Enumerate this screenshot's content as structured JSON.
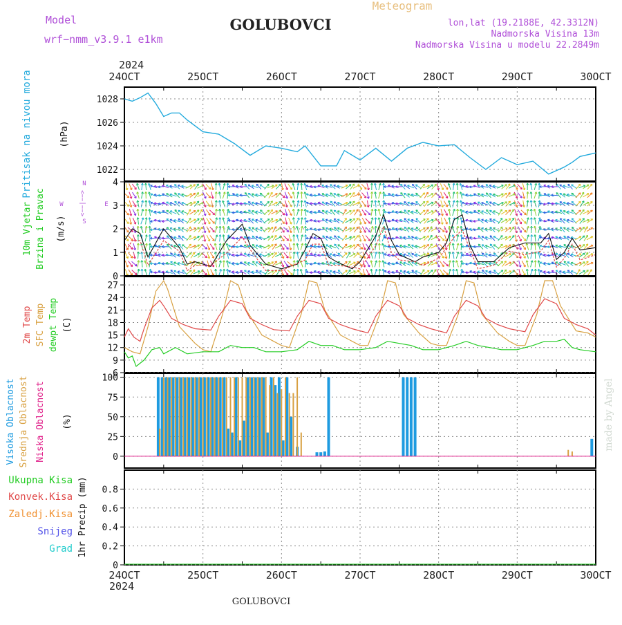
{
  "header": {
    "model_label": "Model",
    "model_name": "wrf−nmm_v3.9.1  e1km",
    "station": "GOLUBOVCI",
    "product": "Meteogram",
    "lonlat": "lon,lat (19.2188E, 42.3312N)",
    "elevation": "Nadmorska Visina 13m",
    "model_elevation": "Nadmorska Visina u modelu 22.2849m",
    "footer_station": "GOLUBOVCI",
    "watermark": "made by Angel"
  },
  "colors": {
    "pressure": "#22aadd",
    "t2m": "#e04848",
    "sfc": "#d8a040",
    "dewpt": "#22cc22",
    "high_cloud": "#1e9be0",
    "mid_cloud": "#d8a040",
    "low_cloud": "#e0208a",
    "purple_text": "#b050d8",
    "meteogram_title": "#e8c080"
  },
  "chart_data": [
    {
      "type": "line",
      "panel": "pressure",
      "ylabel_color": "Pritisak na nivou mora",
      "ylabel_units": "(hPa)",
      "year_top": "2024",
      "year_bottom": "2024",
      "x_ticks": [
        "24OCT",
        "25OCT",
        "26OCT",
        "27OCT",
        "28OCT",
        "29OCT",
        "30OCT"
      ],
      "xlim": [
        24,
        30
      ],
      "ylim": [
        1021,
        1029
      ],
      "yticks": [
        1022,
        1024,
        1026,
        1028
      ],
      "grid": true,
      "x": [
        24.0,
        24.1,
        24.2,
        24.3,
        24.4,
        24.5,
        24.6,
        24.7,
        24.8,
        25.0,
        25.2,
        25.4,
        25.6,
        25.8,
        26.0,
        26.2,
        26.3,
        26.5,
        26.7,
        26.8,
        27.0,
        27.2,
        27.4,
        27.6,
        27.8,
        28.0,
        28.2,
        28.4,
        28.6,
        28.8,
        29.0,
        29.2,
        29.4,
        29.6,
        29.7,
        29.8,
        30.0
      ],
      "y": [
        1028.0,
        1027.8,
        1028.1,
        1028.5,
        1027.6,
        1026.5,
        1026.8,
        1026.8,
        1026.2,
        1025.2,
        1025.0,
        1024.2,
        1023.2,
        1024.0,
        1023.8,
        1023.5,
        1024.0,
        1022.3,
        1022.3,
        1023.6,
        1022.8,
        1023.8,
        1022.7,
        1023.8,
        1024.3,
        1024.0,
        1024.1,
        1023.0,
        1022.0,
        1023.0,
        1022.4,
        1022.7,
        1021.6,
        1022.2,
        1022.6,
        1023.1,
        1023.4
      ]
    },
    {
      "type": "line",
      "panel": "wind",
      "ylabel_color_1": "10m Vjetar",
      "ylabel_color_2": "Brzina i Pravac",
      "ylabel_units": "(m/s)",
      "compass": [
        "W",
        "<−−|−−>",
        "E",
        "N",
        "S"
      ],
      "xlim": [
        24,
        30
      ],
      "ylim": [
        0,
        4
      ],
      "yticks": [
        0,
        1,
        2,
        3,
        4
      ],
      "grid": true,
      "x": [
        24.0,
        24.1,
        24.2,
        24.3,
        24.5,
        24.7,
        24.8,
        24.9,
        25.1,
        25.3,
        25.5,
        25.6,
        25.8,
        26.0,
        26.2,
        26.3,
        26.4,
        26.5,
        26.6,
        26.7,
        26.9,
        27.0,
        27.2,
        27.3,
        27.4,
        27.5,
        27.7,
        27.8,
        28.0,
        28.1,
        28.2,
        28.3,
        28.4,
        28.5,
        28.7,
        28.9,
        29.1,
        29.3,
        29.4,
        29.5,
        29.6,
        29.7,
        29.8,
        30.0
      ],
      "y": [
        1.5,
        2.0,
        1.8,
        0.8,
        2.0,
        1.2,
        0.5,
        0.6,
        0.4,
        1.5,
        2.2,
        1.3,
        0.5,
        0.3,
        0.5,
        1.1,
        1.8,
        1.6,
        0.8,
        0.6,
        0.3,
        0.6,
        1.7,
        2.6,
        1.5,
        0.9,
        0.6,
        0.8,
        1.0,
        1.4,
        2.4,
        2.6,
        1.3,
        0.6,
        0.6,
        1.2,
        1.4,
        1.4,
        1.8,
        0.7,
        1.0,
        1.6,
        1.1,
        1.2
      ]
    },
    {
      "type": "line",
      "panel": "temperature",
      "ylabel_t2m": "2m Temp",
      "ylabel_sfc": "SFC Temp",
      "ylabel_dew": "dewpt Temp",
      "ylabel_units": "(C)",
      "xlim": [
        24,
        30
      ],
      "ylim": [
        6,
        29
      ],
      "yticks": [
        6,
        9,
        12,
        15,
        18,
        21,
        24,
        27
      ],
      "grid": true,
      "series": [
        {
          "name": "2m Temp",
          "x": [
            24.0,
            24.05,
            24.12,
            24.2,
            24.25,
            24.35,
            24.45,
            24.5,
            24.6,
            24.75,
            24.9,
            25.1,
            25.2,
            25.35,
            25.5,
            25.6,
            25.75,
            25.9,
            26.1,
            26.2,
            26.35,
            26.5,
            26.6,
            26.75,
            26.9,
            27.1,
            27.2,
            27.35,
            27.5,
            27.6,
            27.75,
            27.9,
            28.1,
            28.2,
            28.35,
            28.5,
            28.6,
            28.75,
            28.9,
            29.1,
            29.2,
            29.35,
            29.5,
            29.6,
            29.75,
            29.9,
            30.0
          ],
          "y": [
            14.5,
            16.5,
            14.5,
            13.5,
            16.5,
            21.5,
            23.3,
            22.0,
            19.0,
            17.5,
            16.5,
            16.2,
            19.5,
            23.3,
            22.5,
            19.0,
            17.5,
            16.3,
            16.0,
            19.5,
            23.3,
            22.5,
            19.0,
            17.5,
            16.5,
            15.5,
            19.5,
            23.3,
            22.0,
            19.0,
            17.5,
            16.5,
            15.5,
            19.5,
            23.3,
            22.0,
            19.0,
            17.5,
            16.5,
            15.8,
            19.8,
            23.7,
            22.5,
            19.0,
            17.5,
            16.5,
            15.0
          ]
        },
        {
          "name": "SFC Temp",
          "x": [
            24.0,
            24.1,
            24.2,
            24.3,
            24.4,
            24.5,
            24.55,
            24.7,
            24.9,
            25.0,
            25.1,
            25.25,
            25.35,
            25.45,
            25.55,
            25.75,
            25.9,
            26.0,
            26.1,
            26.25,
            26.35,
            26.45,
            26.55,
            26.75,
            26.9,
            27.0,
            27.1,
            27.25,
            27.35,
            27.45,
            27.55,
            27.75,
            27.9,
            28.0,
            28.1,
            28.25,
            28.35,
            28.45,
            28.55,
            28.75,
            28.9,
            29.0,
            29.1,
            29.25,
            29.35,
            29.45,
            29.55,
            29.75,
            29.9,
            30.0
          ],
          "y": [
            12.0,
            11.0,
            10.5,
            17.0,
            25.5,
            28.0,
            26.0,
            17.0,
            13.0,
            11.5,
            11.0,
            20.0,
            28.0,
            27.0,
            21.0,
            15.0,
            13.5,
            12.5,
            12.0,
            20.0,
            28.0,
            27.5,
            21.0,
            15.0,
            13.5,
            12.5,
            12.5,
            20.0,
            28.0,
            27.5,
            20.0,
            15.5,
            13.0,
            12.5,
            12.5,
            20.0,
            28.0,
            27.5,
            20.0,
            15.5,
            13.5,
            12.5,
            12.5,
            20.0,
            28.0,
            28.0,
            22.0,
            16.0,
            15.5,
            14.5
          ]
        },
        {
          "name": "dewpt Temp",
          "x": [
            24.0,
            24.05,
            24.1,
            24.15,
            24.25,
            24.35,
            24.45,
            24.5,
            24.65,
            24.8,
            25.0,
            25.2,
            25.35,
            25.5,
            25.65,
            25.8,
            26.0,
            26.2,
            26.35,
            26.5,
            26.65,
            26.8,
            27.0,
            27.2,
            27.35,
            27.5,
            27.65,
            27.8,
            28.0,
            28.2,
            28.35,
            28.5,
            28.65,
            28.8,
            29.0,
            29.2,
            29.35,
            29.5,
            29.6,
            29.7,
            29.8,
            30.0
          ],
          "y": [
            11.0,
            9.5,
            10.0,
            7.5,
            9.0,
            11.5,
            12.0,
            10.5,
            12.0,
            10.5,
            11.0,
            11.0,
            12.5,
            12.0,
            12.0,
            11.0,
            11.0,
            11.5,
            13.5,
            12.5,
            12.5,
            11.5,
            11.5,
            12.0,
            13.5,
            13.0,
            12.5,
            11.5,
            11.5,
            12.5,
            13.5,
            12.5,
            12.0,
            11.5,
            11.5,
            12.5,
            13.5,
            13.5,
            14.0,
            12.0,
            11.5,
            11.0
          ]
        }
      ]
    },
    {
      "type": "bar",
      "panel": "cloud",
      "ylabel_high": "Visoka Oblacnost",
      "ylabel_mid": "Srednja Oblacnost",
      "ylabel_low": "Niska Oblacnost",
      "ylabel_units": "(%)",
      "xlim": [
        24,
        30
      ],
      "ylim": [
        -15,
        105
      ],
      "yticks": [
        0,
        25,
        50,
        75,
        100
      ],
      "grid": true,
      "series": [
        {
          "name": "Visoka Oblacnost",
          "x": [
            24.43,
            24.48,
            24.53,
            24.57,
            24.62,
            24.67,
            24.72,
            24.77,
            24.82,
            24.87,
            24.92,
            24.97,
            25.02,
            25.07,
            25.12,
            25.17,
            25.22,
            25.27,
            25.32,
            25.37,
            25.42,
            25.47,
            25.52,
            25.57,
            25.62,
            25.67,
            25.72,
            25.77,
            25.82,
            25.87,
            25.92,
            25.97,
            26.02,
            26.07,
            26.12,
            26.2,
            26.45,
            26.5,
            26.55,
            26.6,
            27.55,
            27.6,
            27.65,
            27.7,
            29.95
          ],
          "y": [
            100,
            100,
            100,
            100,
            100,
            100,
            100,
            100,
            100,
            100,
            100,
            100,
            100,
            100,
            100,
            100,
            100,
            100,
            35,
            30,
            100,
            20,
            45,
            100,
            100,
            100,
            100,
            100,
            30,
            100,
            90,
            100,
            20,
            100,
            50,
            12,
            5,
            5,
            6,
            100,
            100,
            100,
            100,
            100,
            22
          ]
        },
        {
          "name": "Srednja Oblacnost",
          "x": [
            24.45,
            24.5,
            24.55,
            24.6,
            24.65,
            24.7,
            24.75,
            24.8,
            24.85,
            24.9,
            24.95,
            25.0,
            25.05,
            25.1,
            25.15,
            25.2,
            25.25,
            25.3,
            25.35,
            25.4,
            25.45,
            25.5,
            25.55,
            25.6,
            25.65,
            25.7,
            25.75,
            25.8,
            25.85,
            25.9,
            25.95,
            26.0,
            26.05,
            26.1,
            26.15,
            26.2,
            26.25,
            29.65,
            29.7
          ],
          "y": [
            35,
            100,
            100,
            100,
            100,
            100,
            100,
            100,
            100,
            100,
            100,
            100,
            100,
            100,
            100,
            100,
            100,
            100,
            100,
            100,
            100,
            100,
            100,
            100,
            100,
            100,
            100,
            100,
            90,
            100,
            80,
            85,
            100,
            80,
            80,
            100,
            30,
            8,
            6
          ]
        },
        {
          "name": "Niska Oblacnost",
          "x": [
            24.0,
            30.0
          ],
          "y": [
            0,
            0
          ]
        }
      ]
    },
    {
      "type": "line",
      "panel": "precip",
      "legend": [
        "Ukupna Kisa",
        "Konvek.Kisa",
        "Zaledj.Kisa",
        "Snijeg",
        "Grad"
      ],
      "legend_colors": [
        "#22cc22",
        "#e04848",
        "#f09030",
        "#5050e8",
        "#22cccc"
      ],
      "ylabel_units": "1hr Precip (mm)",
      "xlim": [
        24,
        30
      ],
      "ylim": [
        0,
        1
      ],
      "yticks": [
        0,
        0.2,
        0.4,
        0.6,
        0.8
      ],
      "ytick_labels": [
        "0",
        "0.2",
        "0.4",
        "0.6",
        "0.8"
      ],
      "grid": true,
      "series": [
        {
          "name": "Ukupna Kisa",
          "x": [
            24,
            30
          ],
          "y": [
            0,
            0
          ]
        }
      ]
    }
  ]
}
